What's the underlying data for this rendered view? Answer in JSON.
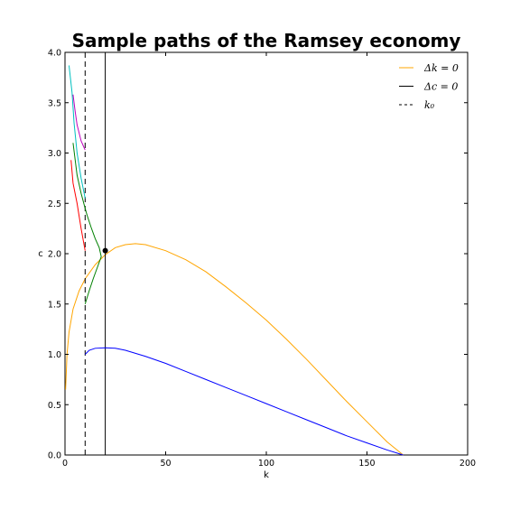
{
  "chart_data": {
    "type": "line",
    "title": "Sample paths of the Ramsey economy",
    "xlabel": "k",
    "ylabel": "c",
    "xlim": [
      0,
      200
    ],
    "ylim": [
      0.0,
      4.0
    ],
    "x_ticks": [
      "0",
      "50",
      "100",
      "150",
      "200"
    ],
    "y_ticks": [
      "0.0",
      "0.5",
      "1.0",
      "1.5",
      "2.0",
      "2.5",
      "3.0",
      "3.5",
      "4.0"
    ],
    "grid": false,
    "legend": {
      "placement": "top-right",
      "entries": [
        {
          "label": "Δk = 0",
          "color": "#ffa500",
          "style": "solid"
        },
        {
          "label": "Δc = 0",
          "color": "#000000",
          "style": "solid"
        },
        {
          "label": "k₀",
          "color": "#000000",
          "style": "dashed"
        }
      ]
    },
    "series": [
      {
        "name": "Δk = 0",
        "color": "#ffa500",
        "points": [
          [
            0.3,
            0.65
          ],
          [
            1,
            1.0
          ],
          [
            2,
            1.22
          ],
          [
            4,
            1.45
          ],
          [
            7,
            1.63
          ],
          [
            10,
            1.75
          ],
          [
            15,
            1.89
          ],
          [
            20,
            1.99
          ],
          [
            25,
            2.06
          ],
          [
            30,
            2.09
          ],
          [
            35,
            2.1
          ],
          [
            40,
            2.09
          ],
          [
            50,
            2.03
          ],
          [
            60,
            1.94
          ],
          [
            70,
            1.82
          ],
          [
            80,
            1.67
          ],
          [
            90,
            1.51
          ],
          [
            100,
            1.34
          ],
          [
            110,
            1.15
          ],
          [
            120,
            0.95
          ],
          [
            130,
            0.74
          ],
          [
            140,
            0.53
          ],
          [
            150,
            0.33
          ],
          [
            160,
            0.13
          ],
          [
            168,
            0.0
          ]
        ]
      },
      {
        "name": "Δc = 0",
        "color": "#000000",
        "style": "vertical",
        "x": 20,
        "ylim": [
          0,
          4.0
        ]
      },
      {
        "name": "k₀",
        "color": "#000000",
        "style": "vertical-dashed",
        "x": 10,
        "ylim": [
          0,
          4.0
        ]
      },
      {
        "color": "#0000ff",
        "points": [
          [
            10,
            1.0
          ],
          [
            12,
            1.04
          ],
          [
            15,
            1.06
          ],
          [
            20,
            1.065
          ],
          [
            25,
            1.06
          ],
          [
            30,
            1.04
          ],
          [
            40,
            0.98
          ],
          [
            50,
            0.91
          ],
          [
            60,
            0.83
          ],
          [
            70,
            0.75
          ],
          [
            80,
            0.67
          ],
          [
            90,
            0.59
          ],
          [
            100,
            0.51
          ],
          [
            110,
            0.43
          ],
          [
            120,
            0.35
          ],
          [
            130,
            0.27
          ],
          [
            140,
            0.19
          ],
          [
            150,
            0.12
          ],
          [
            160,
            0.05
          ],
          [
            168,
            0.0
          ]
        ]
      },
      {
        "color": "#008000",
        "points": [
          [
            10,
            1.5
          ],
          [
            12,
            1.63
          ],
          [
            14,
            1.75
          ],
          [
            16,
            1.86
          ],
          [
            18,
            1.97
          ],
          [
            17,
            2.06
          ],
          [
            15,
            2.15
          ],
          [
            13,
            2.26
          ],
          [
            11,
            2.38
          ],
          [
            10,
            2.45
          ],
          [
            8,
            2.6
          ],
          [
            6,
            2.78
          ],
          [
            4,
            3.1
          ]
        ]
      },
      {
        "color": "#ff0000",
        "points": [
          [
            10,
            2.03
          ],
          [
            8,
            2.25
          ],
          [
            6,
            2.5
          ],
          [
            4,
            2.7
          ],
          [
            3,
            2.93
          ]
        ]
      },
      {
        "color": "#00bfbf",
        "points": [
          [
            10,
            2.55
          ],
          [
            8,
            2.75
          ],
          [
            6,
            3.0
          ],
          [
            4.5,
            3.3
          ],
          [
            3.5,
            3.6
          ],
          [
            2,
            3.87
          ]
        ]
      },
      {
        "color": "#bf00bf",
        "points": [
          [
            10,
            3.03
          ],
          [
            8,
            3.12
          ],
          [
            6,
            3.28
          ],
          [
            5,
            3.42
          ],
          [
            4,
            3.58
          ]
        ]
      }
    ],
    "annotations": [
      {
        "type": "point",
        "x": 20,
        "y": 2.03,
        "color": "#000000"
      }
    ]
  }
}
